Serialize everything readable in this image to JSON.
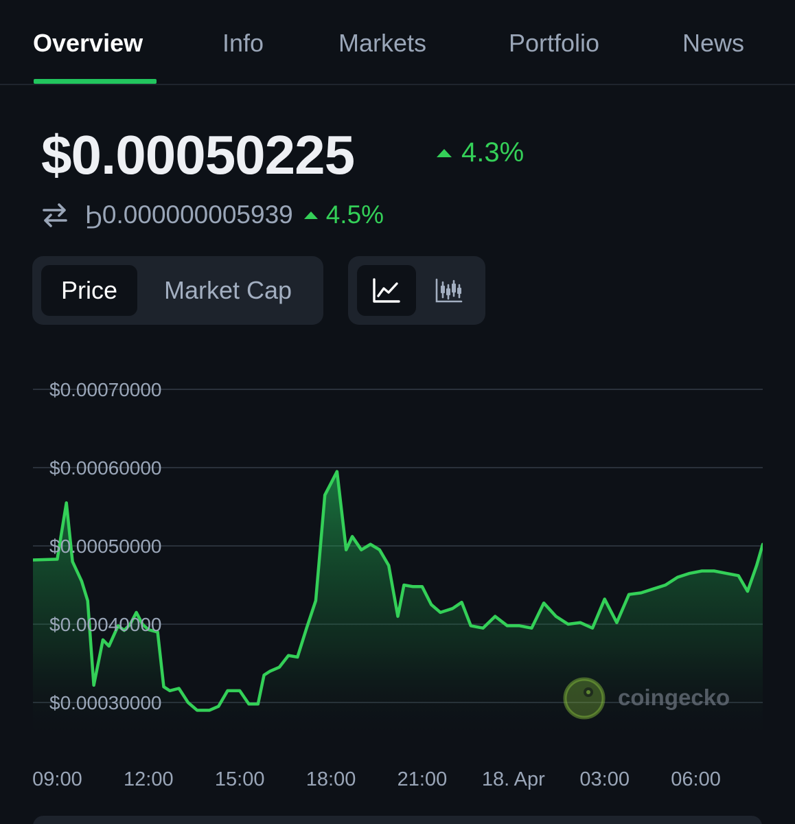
{
  "tabs": [
    {
      "label": "Overview",
      "active": true
    },
    {
      "label": "Info",
      "active": false
    },
    {
      "label": "Markets",
      "active": false
    },
    {
      "label": "Portfolio",
      "active": false
    },
    {
      "label": "News",
      "active": false
    }
  ],
  "price": {
    "usd": "$0.00050225",
    "usd_change": "4.3%",
    "btc": "Ϧ0.000000005939",
    "btc_change": "4.5%",
    "direction": "up",
    "swap_icon": "swap-arrows-icon"
  },
  "toggles": {
    "metric": [
      {
        "label": "Price",
        "active": true
      },
      {
        "label": "Market Cap",
        "active": false
      }
    ],
    "chart_type": [
      {
        "icon": "line-chart-icon",
        "active": true
      },
      {
        "icon": "candlestick-chart-icon",
        "active": false
      }
    ]
  },
  "watermark": {
    "text": "coingecko",
    "icon": "coingecko-logo-icon"
  },
  "colors": {
    "background": "#0d1117",
    "accent_green": "#22c55e",
    "up": "#34d058",
    "muted": "#9aa6b8",
    "panel": "#1d232c"
  },
  "chart_data": {
    "type": "area",
    "title": "",
    "xlabel": "",
    "ylabel": "",
    "x_ticks": [
      "09:00",
      "12:00",
      "15:00",
      "18:00",
      "21:00",
      "18. Apr",
      "03:00",
      "06:00"
    ],
    "y_ticks": [
      "$0.00030000",
      "$0.00040000",
      "$0.00050000",
      "$0.00060000",
      "$0.00070000"
    ],
    "ylim": [
      0.0003,
      0.0007
    ],
    "xlim_hours": [
      8.2,
      32.2
    ],
    "grid": true,
    "series": [
      {
        "x": [
          8.2,
          9.0,
          9.3,
          9.5,
          9.8,
          10.0,
          10.2,
          10.5,
          10.7,
          11.0,
          11.2,
          11.4,
          11.6,
          11.8,
          12.0,
          12.3,
          12.5,
          12.7,
          13.0,
          13.3,
          13.6,
          14.0,
          14.3,
          14.6,
          15.0,
          15.3,
          15.6,
          15.8,
          16.0,
          16.3,
          16.6,
          16.9,
          17.2,
          17.5,
          17.8,
          18.0,
          18.2,
          18.5,
          18.7,
          19.0,
          19.3,
          19.6,
          19.9,
          20.2,
          20.4,
          20.7,
          21.0,
          21.3,
          21.6,
          22.0,
          22.3,
          22.6,
          23.0,
          23.4,
          23.8,
          24.2,
          24.6,
          25.0,
          25.4,
          25.8,
          26.2,
          26.6,
          27.0,
          27.4,
          27.8,
          28.2,
          28.6,
          29.0,
          29.4,
          29.8,
          30.2,
          30.6,
          31.0,
          31.4,
          31.7,
          32.0,
          32.2
        ],
        "y": [
          0.000482,
          0.000483,
          0.000555,
          0.00048,
          0.000455,
          0.00043,
          0.000322,
          0.00038,
          0.000372,
          0.000398,
          0.000392,
          0.0004,
          0.000415,
          0.0004,
          0.000393,
          0.00039,
          0.00032,
          0.000315,
          0.000318,
          0.0003,
          0.00029,
          0.00029,
          0.000295,
          0.000315,
          0.000315,
          0.000298,
          0.000298,
          0.000335,
          0.00034,
          0.000345,
          0.00036,
          0.000358,
          0.000395,
          0.00043,
          0.000565,
          0.00058,
          0.000595,
          0.000495,
          0.000512,
          0.000495,
          0.000502,
          0.000495,
          0.000475,
          0.00041,
          0.00045,
          0.000448,
          0.000448,
          0.000425,
          0.000415,
          0.00042,
          0.000428,
          0.000398,
          0.000395,
          0.00041,
          0.000398,
          0.000398,
          0.000395,
          0.000427,
          0.00041,
          0.0004,
          0.000402,
          0.000395,
          0.000432,
          0.000402,
          0.000438,
          0.00044,
          0.000445,
          0.00045,
          0.00046,
          0.000465,
          0.000468,
          0.000468,
          0.000465,
          0.000462,
          0.000442,
          0.000475,
          0.000502
        ]
      }
    ]
  }
}
